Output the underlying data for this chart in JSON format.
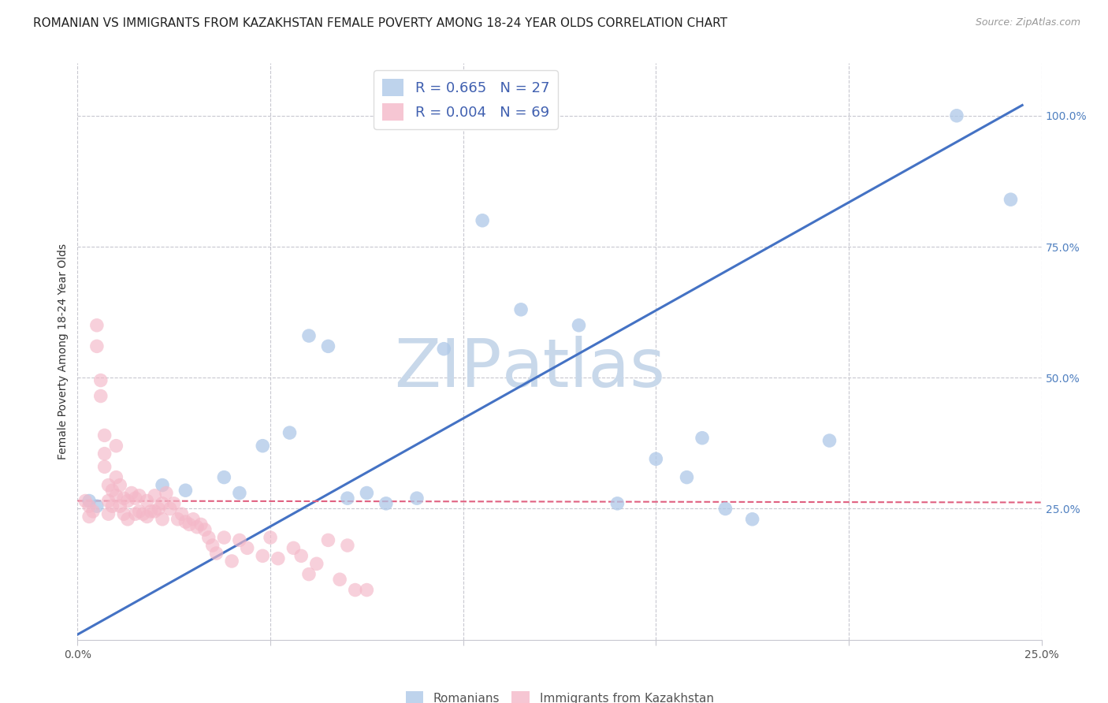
{
  "title": "ROMANIAN VS IMMIGRANTS FROM KAZAKHSTAN FEMALE POVERTY AMONG 18-24 YEAR OLDS CORRELATION CHART",
  "source": "Source: ZipAtlas.com",
  "ylabel": "Female Poverty Among 18-24 Year Olds",
  "xlim": [
    0.0,
    0.25
  ],
  "ylim": [
    0.0,
    1.1
  ],
  "xticks": [
    0.0,
    0.05,
    0.1,
    0.15,
    0.2,
    0.25
  ],
  "xtick_labels": [
    "0.0%",
    "",
    "",
    "",
    "",
    "25.0%"
  ],
  "yticks_right": [
    0.25,
    0.5,
    0.75,
    1.0
  ],
  "ytick_labels_right": [
    "25.0%",
    "50.0%",
    "75.0%",
    "100.0%"
  ],
  "legend_blue_r": "R = 0.665",
  "legend_blue_n": "N = 27",
  "legend_pink_r": "R = 0.004",
  "legend_pink_n": "N = 69",
  "blue_color": "#aec8e8",
  "pink_color": "#f4b8c8",
  "blue_line_color": "#4472c4",
  "pink_line_color": "#e06080",
  "grid_color": "#c8c8d0",
  "watermark_zip": "ZIP",
  "watermark_atlas": "atlas",
  "watermark_color": "#c8d8ea",
  "blue_scatter_x": [
    0.003,
    0.005,
    0.022,
    0.028,
    0.038,
    0.042,
    0.048,
    0.055,
    0.06,
    0.065,
    0.07,
    0.075,
    0.08,
    0.088,
    0.095,
    0.105,
    0.115,
    0.13,
    0.14,
    0.15,
    0.158,
    0.162,
    0.168,
    0.175,
    0.195,
    0.228,
    0.242
  ],
  "blue_scatter_y": [
    0.265,
    0.255,
    0.295,
    0.285,
    0.31,
    0.28,
    0.37,
    0.395,
    0.58,
    0.56,
    0.27,
    0.28,
    0.26,
    0.27,
    0.555,
    0.8,
    0.63,
    0.6,
    0.26,
    0.345,
    0.31,
    0.385,
    0.25,
    0.23,
    0.38,
    1.0,
    0.84
  ],
  "pink_scatter_x": [
    0.002,
    0.003,
    0.003,
    0.004,
    0.005,
    0.005,
    0.006,
    0.006,
    0.007,
    0.007,
    0.007,
    0.008,
    0.008,
    0.008,
    0.009,
    0.009,
    0.01,
    0.01,
    0.01,
    0.011,
    0.011,
    0.012,
    0.012,
    0.013,
    0.013,
    0.014,
    0.015,
    0.015,
    0.016,
    0.016,
    0.017,
    0.018,
    0.018,
    0.019,
    0.02,
    0.02,
    0.021,
    0.022,
    0.022,
    0.023,
    0.024,
    0.025,
    0.026,
    0.027,
    0.028,
    0.029,
    0.03,
    0.031,
    0.032,
    0.033,
    0.034,
    0.035,
    0.036,
    0.038,
    0.04,
    0.042,
    0.044,
    0.048,
    0.05,
    0.052,
    0.056,
    0.058,
    0.06,
    0.062,
    0.065,
    0.068,
    0.07,
    0.072,
    0.075
  ],
  "pink_scatter_y": [
    0.265,
    0.255,
    0.235,
    0.245,
    0.6,
    0.56,
    0.495,
    0.465,
    0.39,
    0.355,
    0.33,
    0.295,
    0.265,
    0.24,
    0.285,
    0.255,
    0.37,
    0.31,
    0.275,
    0.295,
    0.255,
    0.27,
    0.24,
    0.265,
    0.23,
    0.28,
    0.27,
    0.24,
    0.275,
    0.245,
    0.24,
    0.265,
    0.235,
    0.245,
    0.275,
    0.245,
    0.25,
    0.26,
    0.23,
    0.28,
    0.25,
    0.26,
    0.23,
    0.24,
    0.225,
    0.22,
    0.23,
    0.215,
    0.22,
    0.21,
    0.195,
    0.18,
    0.165,
    0.195,
    0.15,
    0.19,
    0.175,
    0.16,
    0.195,
    0.155,
    0.175,
    0.16,
    0.125,
    0.145,
    0.19,
    0.115,
    0.18,
    0.095,
    0.095
  ],
  "blue_line_x": [
    0.0,
    0.245
  ],
  "blue_line_y": [
    0.01,
    1.02
  ],
  "pink_line_x": [
    0.0,
    0.25
  ],
  "pink_line_y": [
    0.265,
    0.262
  ],
  "background_color": "#ffffff",
  "title_fontsize": 11,
  "label_fontsize": 10,
  "tick_fontsize": 10,
  "source_fontsize": 9
}
